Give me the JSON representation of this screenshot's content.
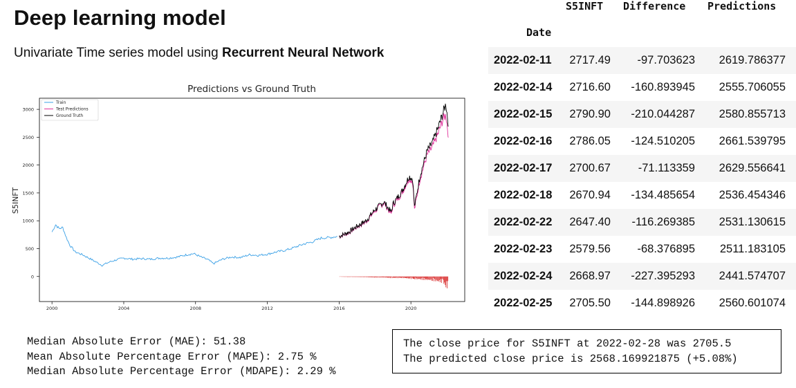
{
  "header": {
    "title": "Deep learning model",
    "subtitle_prefix": "Univariate Time series model using ",
    "subtitle_bold": "Recurrent Neural Network"
  },
  "chart_data": {
    "type": "line",
    "title": "Predictions vs Ground Truth",
    "xlabel": "",
    "ylabel": "S5INFT",
    "xlim": [
      1999.3,
      2023.0
    ],
    "ylim": [
      -450,
      3200
    ],
    "x_ticks": [
      "2000",
      "2004",
      "2008",
      "2012",
      "2016",
      "2020"
    ],
    "y_ticks": [
      "0",
      "500",
      "1000",
      "1500",
      "2000",
      "2500",
      "3000"
    ],
    "grid": false,
    "legend_position": "top-left",
    "legend": [
      "Train",
      "Test Predictions",
      "Ground Truth"
    ],
    "colors": {
      "train": "#3aa0e6",
      "pred": "#e0309a",
      "truth": "#000000",
      "diff": "#d62020"
    },
    "series": [
      {
        "name": "Train",
        "x": [
          2000.0,
          2000.2,
          2000.4,
          2000.6,
          2000.8,
          2001.0,
          2001.3,
          2001.7,
          2002.0,
          2002.4,
          2002.8,
          2003.2,
          2003.6,
          2004.0,
          2004.5,
          2005.0,
          2005.5,
          2006.0,
          2006.5,
          2007.0,
          2007.5,
          2007.9,
          2008.3,
          2008.7,
          2009.0,
          2009.5,
          2010.0,
          2010.5,
          2011.0,
          2011.5,
          2012.0,
          2012.5,
          2013.0,
          2013.5,
          2014.0,
          2014.5,
          2015.0,
          2015.5,
          2015.9
        ],
        "values": [
          800,
          930,
          860,
          880,
          700,
          560,
          440,
          390,
          340,
          270,
          200,
          260,
          300,
          330,
          310,
          320,
          310,
          330,
          330,
          350,
          390,
          410,
          350,
          300,
          230,
          310,
          350,
          340,
          390,
          380,
          400,
          440,
          470,
          520,
          580,
          620,
          690,
          700,
          720
        ]
      },
      {
        "name": "Ground Truth",
        "x": [
          2016.0,
          2016.5,
          2017.0,
          2017.5,
          2018.0,
          2018.5,
          2018.9,
          2019.0,
          2019.5,
          2019.9,
          2020.1,
          2020.2,
          2020.5,
          2020.9,
          2021.2,
          2021.5,
          2021.8,
          2021.95,
          2022.1
        ],
        "values": [
          720,
          790,
          900,
          1000,
          1200,
          1340,
          1150,
          1300,
          1530,
          1800,
          1750,
          1250,
          1800,
          2250,
          2400,
          2650,
          2950,
          3100,
          2700
        ]
      },
      {
        "name": "Test Predictions",
        "x": [
          2016.0,
          2016.5,
          2017.0,
          2017.5,
          2018.0,
          2018.5,
          2018.9,
          2019.0,
          2019.5,
          2019.9,
          2020.1,
          2020.2,
          2020.5,
          2020.9,
          2021.2,
          2021.5,
          2021.8,
          2021.95,
          2022.1
        ],
        "values": [
          715,
          780,
          890,
          985,
          1180,
          1320,
          1120,
          1270,
          1500,
          1760,
          1700,
          1200,
          1740,
          2180,
          2320,
          2550,
          2830,
          2900,
          2500
        ]
      },
      {
        "name": "Difference",
        "x": [
          2016.0,
          2016.5,
          2017.0,
          2017.5,
          2018.0,
          2018.5,
          2018.9,
          2019.0,
          2019.5,
          2019.9,
          2020.1,
          2020.2,
          2020.5,
          2020.9,
          2021.2,
          2021.5,
          2021.8,
          2021.95,
          2022.1
        ],
        "values": [
          -5,
          -10,
          -10,
          -15,
          -20,
          -20,
          -30,
          -30,
          -30,
          -40,
          -50,
          -50,
          -60,
          -70,
          -80,
          -100,
          -120,
          -200,
          -227
        ]
      }
    ]
  },
  "table": {
    "columns": [
      "S5INFT",
      "Difference",
      "Predictions"
    ],
    "index_name": "Date",
    "rows": [
      [
        "2022-02-11",
        "2717.49",
        "-97.703623",
        "2619.786377"
      ],
      [
        "2022-02-14",
        "2716.60",
        "-160.893945",
        "2555.706055"
      ],
      [
        "2022-02-15",
        "2790.90",
        "-210.044287",
        "2580.855713"
      ],
      [
        "2022-02-16",
        "2786.05",
        "-124.510205",
        "2661.539795"
      ],
      [
        "2022-02-17",
        "2700.67",
        "-71.113359",
        "2629.556641"
      ],
      [
        "2022-02-18",
        "2670.94",
        "-134.485654",
        "2536.454346"
      ],
      [
        "2022-02-22",
        "2647.40",
        "-116.269385",
        "2531.130615"
      ],
      [
        "2022-02-23",
        "2579.56",
        "-68.376895",
        "2511.183105"
      ],
      [
        "2022-02-24",
        "2668.97",
        "-227.395293",
        "2441.574707"
      ],
      [
        "2022-02-25",
        "2705.50",
        "-144.898926",
        "2560.601074"
      ]
    ]
  },
  "metrics": {
    "mae": "Median Absolute Error (MAE): 51.38",
    "mape": "Mean Absolute Percentage Error (MAPE): 2.75 %",
    "mdape": "Median Absolute Percentage Error (MDAPE): 2.29 %"
  },
  "summary": {
    "line1": "The close price for S5INFT at 2022-02-28 was 2705.5",
    "line2": "The predicted close price is 2568.169921875 (+5.08%)"
  }
}
